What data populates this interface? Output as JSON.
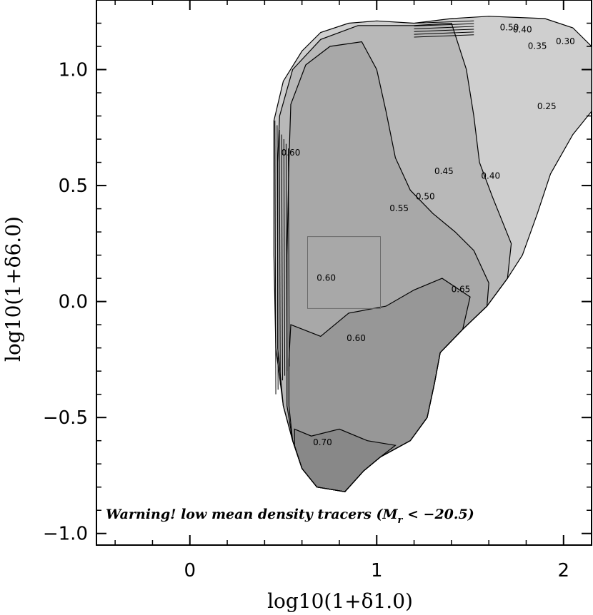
{
  "chart_data": {
    "type": "contour",
    "xlabel": "log10(1+δ1.0)",
    "ylabel": "log10(1+δ6.0)",
    "xlim": [
      -0.5,
      2.15
    ],
    "ylim": [
      -1.05,
      1.3
    ],
    "xticks": [
      0,
      1,
      2
    ],
    "xtick_labels": [
      "0",
      "1",
      "2"
    ],
    "yticks": [
      -1.0,
      -0.5,
      0.0,
      0.5,
      1.0
    ],
    "ytick_labels": [
      "−1.0",
      "−0.5",
      "0.0",
      "0.5",
      "1.0"
    ],
    "annotation": "Warning! low mean density tracers (M",
    "annotation_sub": "r",
    "annotation_tail": " < −20.5)",
    "contour_levels": [
      "0.25",
      "0.30",
      "0.35",
      "0.40",
      "0.45",
      "0.50",
      "0.55",
      "0.60",
      "0.65",
      "0.70"
    ],
    "contour_labels": [
      {
        "text": "0.25",
        "x": 1.91,
        "y": 0.83
      },
      {
        "text": "0.30",
        "x": 2.01,
        "y": 1.11
      },
      {
        "text": "0.35",
        "x": 1.86,
        "y": 1.09
      },
      {
        "text": "0.40",
        "x": 1.61,
        "y": 0.53
      },
      {
        "text": "0.45",
        "x": 1.36,
        "y": 0.55
      },
      {
        "text": "0.50",
        "x": 1.26,
        "y": 0.44
      },
      {
        "text": "0.55",
        "x": 1.12,
        "y": 0.39
      },
      {
        "text": "0.60",
        "x": 0.73,
        "y": 0.09
      },
      {
        "text": "0.60",
        "x": 0.89,
        "y": -0.17
      },
      {
        "text": "0.60",
        "x": 0.54,
        "y": 0.63
      },
      {
        "text": "0.65",
        "x": 1.45,
        "y": 0.04
      },
      {
        "text": "0.70",
        "x": 0.71,
        "y": -0.62
      },
      {
        "text": "0.50",
        "x": 1.71,
        "y": 1.17
      },
      {
        "text": "0.40",
        "x": 1.78,
        "y": 1.16
      }
    ],
    "selection_box": {
      "x": [
        0.63,
        1.02
      ],
      "y": [
        -0.03,
        0.28
      ]
    },
    "regions": [
      {
        "level": "outer",
        "color": "#cfcfcf",
        "points": [
          [
            0.45,
            0.78
          ],
          [
            0.5,
            0.95
          ],
          [
            0.6,
            1.08
          ],
          [
            0.7,
            1.16
          ],
          [
            0.85,
            1.2
          ],
          [
            1.0,
            1.21
          ],
          [
            1.2,
            1.2
          ],
          [
            1.4,
            1.22
          ],
          [
            1.6,
            1.23
          ],
          [
            1.9,
            1.22
          ],
          [
            2.05,
            1.18
          ],
          [
            2.15,
            1.1
          ],
          [
            2.15,
            0.82
          ],
          [
            2.05,
            0.72
          ],
          [
            1.93,
            0.55
          ],
          [
            1.86,
            0.38
          ],
          [
            1.78,
            0.2
          ],
          [
            1.7,
            0.1
          ],
          [
            1.59,
            -0.02
          ],
          [
            1.46,
            -0.12
          ],
          [
            1.34,
            -0.22
          ],
          [
            1.31,
            -0.35
          ],
          [
            1.27,
            -0.5
          ],
          [
            1.18,
            -0.6
          ],
          [
            1.02,
            -0.67
          ],
          [
            0.93,
            -0.73
          ],
          [
            0.83,
            -0.82
          ],
          [
            0.68,
            -0.8
          ],
          [
            0.6,
            -0.72
          ],
          [
            0.55,
            -0.6
          ],
          [
            0.5,
            -0.45
          ],
          [
            0.46,
            -0.2
          ],
          [
            0.45,
            0.2
          ],
          [
            0.45,
            0.6
          ]
        ]
      },
      {
        "level": "0.45",
        "color": "#b8b8b8",
        "points": [
          [
            0.48,
            0.8
          ],
          [
            0.55,
            1.0
          ],
          [
            0.7,
            1.13
          ],
          [
            0.9,
            1.19
          ],
          [
            1.2,
            1.19
          ],
          [
            1.4,
            1.2
          ],
          [
            1.48,
            1.0
          ],
          [
            1.52,
            0.8
          ],
          [
            1.55,
            0.6
          ],
          [
            1.62,
            0.45
          ],
          [
            1.72,
            0.25
          ],
          [
            1.7,
            0.1
          ],
          [
            1.59,
            -0.02
          ],
          [
            1.46,
            -0.12
          ],
          [
            1.34,
            -0.22
          ],
          [
            1.31,
            -0.35
          ],
          [
            1.27,
            -0.5
          ],
          [
            1.18,
            -0.6
          ],
          [
            1.02,
            -0.67
          ],
          [
            0.93,
            -0.73
          ],
          [
            0.83,
            -0.82
          ],
          [
            0.68,
            -0.8
          ],
          [
            0.6,
            -0.72
          ],
          [
            0.55,
            -0.6
          ],
          [
            0.5,
            -0.45
          ],
          [
            0.47,
            -0.2
          ],
          [
            0.47,
            0.2
          ],
          [
            0.47,
            0.6
          ]
        ]
      },
      {
        "level": "0.55",
        "color": "#a8a8a8",
        "points": [
          [
            0.54,
            0.85
          ],
          [
            0.62,
            1.02
          ],
          [
            0.75,
            1.1
          ],
          [
            0.92,
            1.12
          ],
          [
            1.0,
            1.0
          ],
          [
            1.05,
            0.82
          ],
          [
            1.1,
            0.62
          ],
          [
            1.18,
            0.48
          ],
          [
            1.3,
            0.38
          ],
          [
            1.42,
            0.3
          ],
          [
            1.52,
            0.22
          ],
          [
            1.6,
            0.08
          ],
          [
            1.59,
            -0.02
          ],
          [
            1.46,
            -0.12
          ],
          [
            1.34,
            -0.22
          ],
          [
            1.31,
            -0.35
          ],
          [
            1.27,
            -0.5
          ],
          [
            1.18,
            -0.6
          ],
          [
            1.02,
            -0.67
          ],
          [
            0.93,
            -0.73
          ],
          [
            0.83,
            -0.82
          ],
          [
            0.68,
            -0.8
          ],
          [
            0.6,
            -0.72
          ],
          [
            0.55,
            -0.6
          ],
          [
            0.52,
            -0.45
          ],
          [
            0.52,
            -0.2
          ],
          [
            0.52,
            0.2
          ],
          [
            0.53,
            0.6
          ]
        ]
      },
      {
        "level": "0.65",
        "color": "#979797",
        "points": [
          [
            0.54,
            -0.1
          ],
          [
            0.7,
            -0.15
          ],
          [
            0.85,
            -0.05
          ],
          [
            1.05,
            -0.02
          ],
          [
            1.2,
            0.05
          ],
          [
            1.35,
            0.1
          ],
          [
            1.5,
            0.02
          ],
          [
            1.46,
            -0.12
          ],
          [
            1.34,
            -0.22
          ],
          [
            1.31,
            -0.35
          ],
          [
            1.27,
            -0.5
          ],
          [
            1.18,
            -0.6
          ],
          [
            1.02,
            -0.67
          ],
          [
            0.93,
            -0.73
          ],
          [
            0.83,
            -0.82
          ],
          [
            0.68,
            -0.8
          ],
          [
            0.6,
            -0.72
          ],
          [
            0.55,
            -0.6
          ],
          [
            0.53,
            -0.45
          ],
          [
            0.53,
            -0.25
          ]
        ]
      },
      {
        "level": "0.70",
        "color": "#888888",
        "points": [
          [
            0.56,
            -0.55
          ],
          [
            0.65,
            -0.58
          ],
          [
            0.8,
            -0.55
          ],
          [
            0.95,
            -0.6
          ],
          [
            1.1,
            -0.62
          ],
          [
            1.02,
            -0.67
          ],
          [
            0.93,
            -0.73
          ],
          [
            0.83,
            -0.82
          ],
          [
            0.68,
            -0.8
          ],
          [
            0.6,
            -0.72
          ],
          [
            0.56,
            -0.62
          ]
        ]
      }
    ]
  }
}
